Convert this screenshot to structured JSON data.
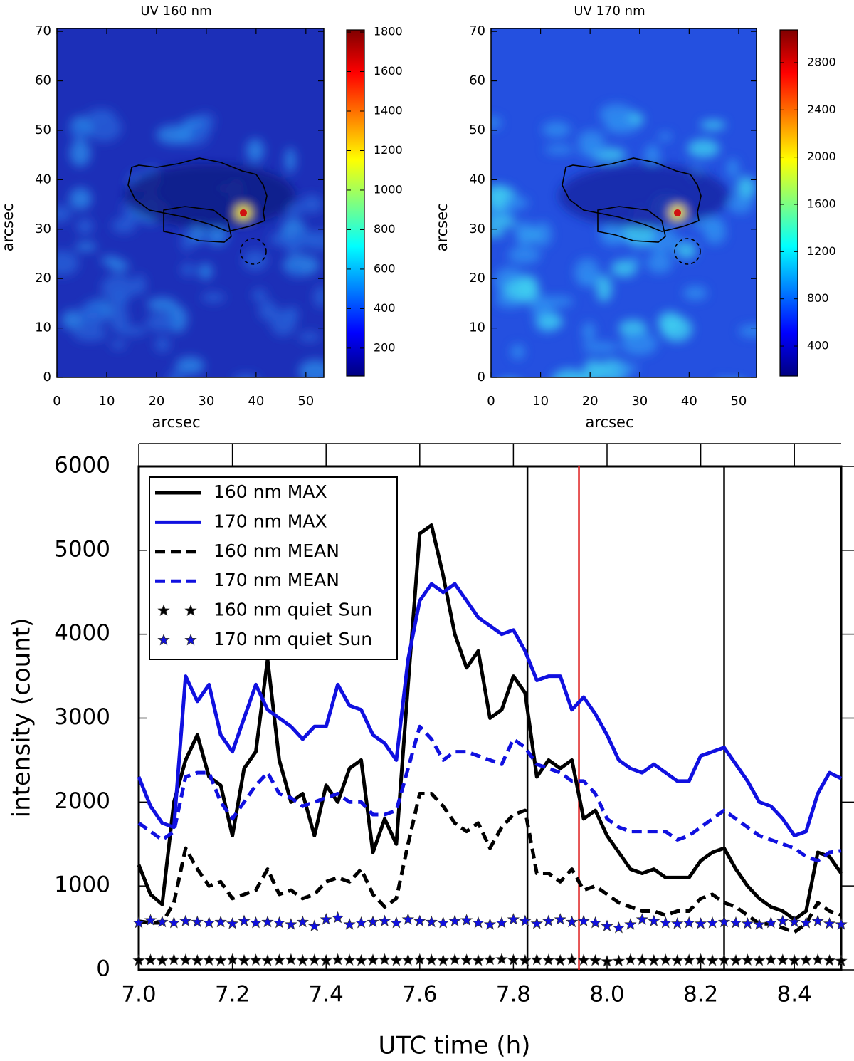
{
  "chart_data": [
    {
      "type": "heatmap",
      "title": "UV 160 nm",
      "xlabel": "arcsec",
      "ylabel": "arcsec",
      "xlim": [
        0,
        53.6
      ],
      "ylim": [
        0,
        70.6
      ],
      "xticks": [
        0,
        10,
        20,
        30,
        40,
        50
      ],
      "yticks": [
        0,
        10,
        20,
        30,
        40,
        50,
        60,
        70
      ],
      "colormap": "jet",
      "clim": [
        59,
        1811
      ],
      "cticks": [
        200,
        400,
        600,
        800,
        1000,
        1200,
        1400,
        1600,
        1800
      ]
    },
    {
      "type": "heatmap",
      "title": "UV 170 nm",
      "xlabel": "arcsec",
      "ylabel": "arcsec",
      "xlim": [
        0,
        53.6
      ],
      "ylim": [
        0,
        70.6
      ],
      "xticks": [
        0,
        10,
        20,
        30,
        40,
        50
      ],
      "yticks": [
        0,
        10,
        20,
        30,
        40,
        50,
        60,
        70
      ],
      "colormap": "jet",
      "clim": [
        147,
        3077
      ],
      "cticks": [
        400,
        800,
        1200,
        1600,
        2000,
        2400,
        2800
      ]
    },
    {
      "type": "line",
      "xlabel": "UTC time (h)",
      "ylabel": "intensity (count)",
      "xlim": [
        7.0,
        8.5
      ],
      "ylim": [
        0,
        6000
      ],
      "xticks": [
        {
          "value": 7.0,
          "label": "7.0"
        },
        7.2,
        7.4,
        7.6,
        7.8,
        {
          "value": 8.0,
          "label": "8.0"
        },
        8.2,
        8.4
      ],
      "yticks": [
        0,
        1000,
        2000,
        3000,
        4000,
        5000,
        6000
      ],
      "legend": "upper left",
      "vlines": [
        {
          "x": 7.83,
          "color": "#000000"
        },
        {
          "x": 7.94,
          "color": "#e02020"
        },
        {
          "x": 8.25,
          "color": "#000000"
        }
      ],
      "x": [
        7,
        7.025,
        7.05,
        7.075,
        7.1,
        7.125,
        7.15,
        7.175,
        7.2,
        7.225,
        7.25,
        7.275,
        7.3,
        7.325,
        7.35,
        7.375,
        7.4,
        7.425,
        7.45,
        7.475,
        7.5,
        7.525,
        7.55,
        7.575,
        7.6,
        7.625,
        7.65,
        7.675,
        7.7,
        7.725,
        7.75,
        7.775,
        7.8,
        7.825,
        7.85,
        7.875,
        7.9,
        7.925,
        7.95,
        7.975,
        8,
        8.025,
        8.05,
        8.075,
        8.1,
        8.125,
        8.15,
        8.175,
        8.2,
        8.225,
        8.25,
        8.275,
        8.3,
        8.325,
        8.35,
        8.375,
        8.4,
        8.425,
        8.45,
        8.475,
        8.5
      ],
      "series": [
        {
          "name": "160 nm MAX",
          "color": "#000000",
          "linestyle": "solid",
          "marker": "none",
          "values": [
            1250,
            900,
            780,
            2000,
            2500,
            2800,
            2300,
            2200,
            1600,
            2400,
            2600,
            3700,
            2500,
            2000,
            2100,
            1600,
            2200,
            2000,
            2400,
            2500,
            1400,
            1800,
            1500,
            3400,
            5200,
            5300,
            4700,
            4000,
            3600,
            3800,
            3000,
            3100,
            3500,
            3300,
            2300,
            2500,
            2400,
            2500,
            1800,
            1900,
            1600,
            1400,
            1200,
            1150,
            1200,
            1100,
            1100,
            1100,
            1300,
            1400,
            1450,
            1200,
            1000,
            850,
            750,
            700,
            600,
            700,
            1400,
            1350,
            1150
          ]
        },
        {
          "name": "170 nm MAX",
          "color": "#1010e0",
          "linestyle": "solid",
          "marker": "none",
          "values": [
            2300,
            1950,
            1750,
            1700,
            3500,
            3200,
            3400,
            2800,
            2600,
            3000,
            3400,
            3100,
            3000,
            2900,
            2750,
            2900,
            2900,
            3400,
            3150,
            3100,
            2800,
            2700,
            2500,
            3700,
            4400,
            4600,
            4500,
            4600,
            4400,
            4200,
            4100,
            4000,
            4050,
            3800,
            3450,
            3500,
            3500,
            3100,
            3250,
            3050,
            2800,
            2500,
            2400,
            2350,
            2450,
            2350,
            2250,
            2250,
            2550,
            2600,
            2650,
            2450,
            2250,
            2000,
            1950,
            1800,
            1600,
            1650,
            2100,
            2350,
            2280
          ]
        },
        {
          "name": "160 nm MEAN",
          "color": "#000000",
          "linestyle": "dashed",
          "marker": "none",
          "values": [
            580,
            560,
            560,
            800,
            1450,
            1200,
            1000,
            1050,
            850,
            900,
            950,
            1200,
            900,
            950,
            850,
            900,
            1050,
            1100,
            1050,
            1200,
            900,
            750,
            850,
            1500,
            2100,
            2100,
            1950,
            1750,
            1650,
            1750,
            1450,
            1700,
            1850,
            1900,
            1150,
            1150,
            1050,
            1200,
            950,
            1000,
            900,
            800,
            750,
            700,
            700,
            650,
            700,
            700,
            850,
            900,
            800,
            750,
            650,
            550,
            550,
            500,
            450,
            550,
            800,
            700,
            650
          ]
        },
        {
          "name": "170 nm MEAN",
          "color": "#1010e0",
          "linestyle": "dashed",
          "marker": "none",
          "values": [
            1750,
            1650,
            1550,
            1650,
            2300,
            2350,
            2350,
            2000,
            1800,
            2000,
            2200,
            2350,
            2100,
            2050,
            1950,
            2000,
            2050,
            2100,
            2000,
            2000,
            1850,
            1850,
            1900,
            2400,
            2900,
            2750,
            2500,
            2600,
            2600,
            2550,
            2500,
            2450,
            2750,
            2650,
            2450,
            2400,
            2350,
            2250,
            2250,
            2100,
            1800,
            1700,
            1650,
            1650,
            1650,
            1650,
            1550,
            1600,
            1700,
            1800,
            1900,
            1800,
            1700,
            1600,
            1550,
            1500,
            1450,
            1350,
            1300,
            1400,
            1420
          ]
        },
        {
          "name": "160 nm quiet Sun",
          "color": "#000000",
          "linestyle": "none",
          "marker": "star",
          "values": [
            110,
            115,
            110,
            120,
            115,
            110,
            115,
            110,
            120,
            110,
            115,
            110,
            115,
            120,
            110,
            115,
            110,
            120,
            115,
            110,
            115,
            120,
            110,
            115,
            120,
            115,
            110,
            120,
            115,
            110,
            120,
            125,
            115,
            110,
            120,
            115,
            110,
            120,
            115,
            110,
            100,
            105,
            120,
            115,
            110,
            115,
            110,
            115,
            120,
            110,
            115,
            110,
            115,
            110,
            120,
            115,
            110,
            115,
            120,
            110,
            105
          ]
        },
        {
          "name": "170 nm quiet Sun",
          "color": "#1010e0",
          "linestyle": "none",
          "marker": "star",
          "values": [
            560,
            590,
            570,
            560,
            580,
            570,
            560,
            570,
            550,
            580,
            560,
            570,
            560,
            540,
            570,
            520,
            600,
            620,
            540,
            560,
            570,
            580,
            560,
            600,
            580,
            570,
            560,
            580,
            590,
            560,
            540,
            560,
            600,
            580,
            550,
            580,
            600,
            570,
            580,
            560,
            520,
            500,
            540,
            600,
            580,
            560,
            550,
            560,
            550,
            560,
            570,
            560,
            550,
            540,
            560,
            580,
            570,
            560,
            580,
            550,
            540
          ]
        }
      ]
    }
  ]
}
